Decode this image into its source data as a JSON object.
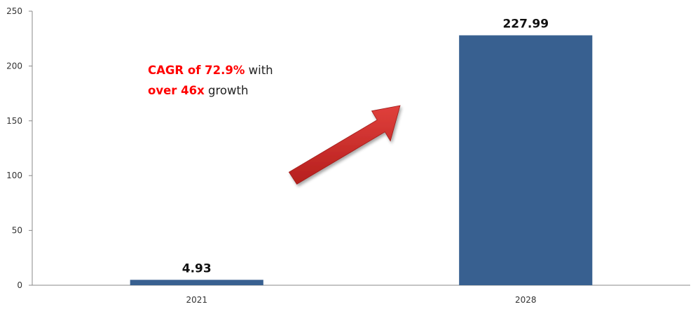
{
  "chart_data": {
    "type": "bar",
    "categories": [
      "2021",
      "2028"
    ],
    "values": [
      4.93,
      227.99
    ],
    "data_labels": [
      "4.93",
      "227.99"
    ],
    "title": "",
    "xlabel": "",
    "ylabel": "",
    "ylim": [
      0,
      250
    ],
    "y_ticks": [
      "0",
      "50",
      "100",
      "150",
      "200",
      "250"
    ],
    "grid": false,
    "legend": "none",
    "bar_color": "#386090",
    "annotation": {
      "line1_highlight": "CAGR of 72.9%",
      "line1_rest": " with",
      "line2_highlight": "over 46x",
      "line2_rest": " growth",
      "highlight_color": "#ff0000"
    },
    "arrow_color": "#cc2a28"
  }
}
